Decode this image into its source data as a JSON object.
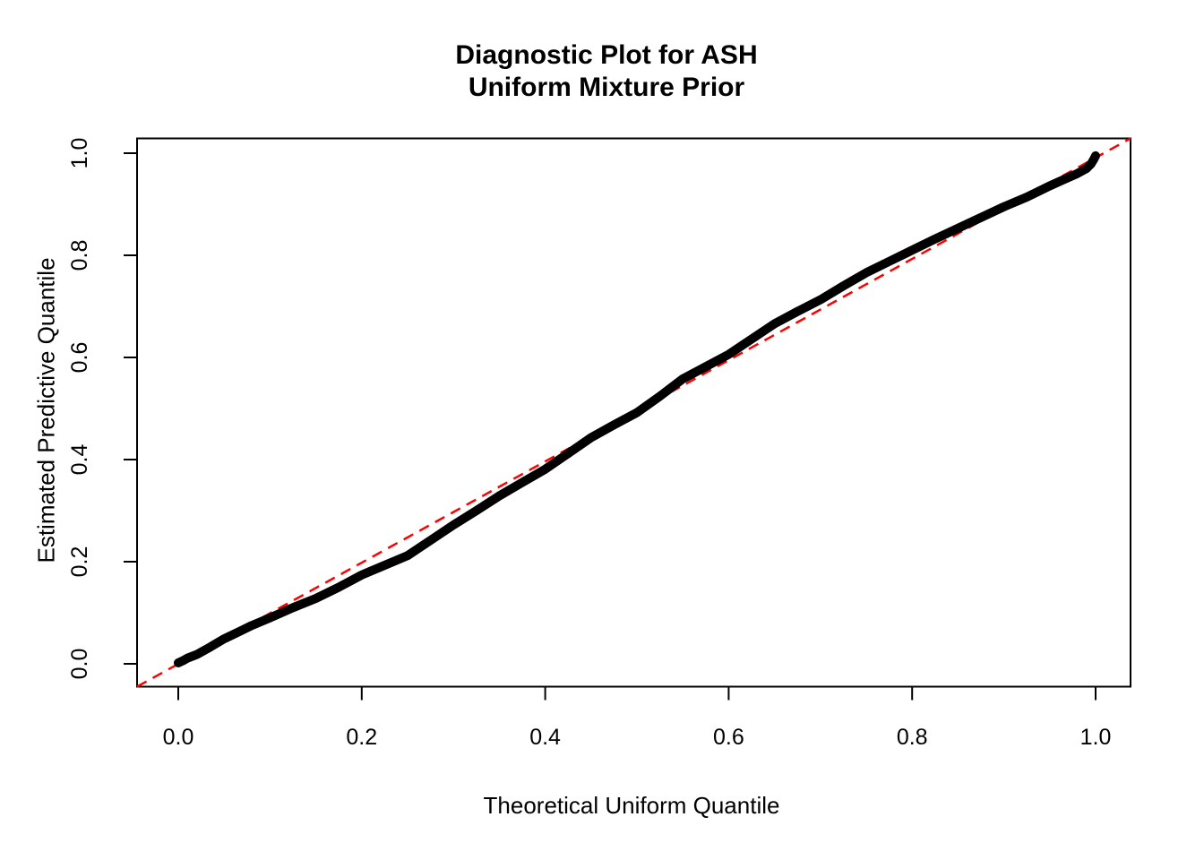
{
  "title": {
    "line1": "Diagnostic Plot for ASH",
    "line2": "Uniform Mixture Prior"
  },
  "chart_data": {
    "type": "line",
    "title": "Diagnostic Plot for ASH\nUniform Mixture Prior",
    "xlabel": "Theoretical Uniform Quantile",
    "ylabel": "Estimated Predictive Quantile",
    "xlim": [
      -0.04,
      1.04
    ],
    "ylim": [
      -0.04,
      1.04
    ],
    "grid": false,
    "legend_position": "none",
    "x_tick_values": [
      0.0,
      0.2,
      0.4,
      0.6,
      0.8,
      1.0
    ],
    "x_tick_labels": [
      "0.0",
      "0.2",
      "0.4",
      "0.6",
      "0.8",
      "1.0"
    ],
    "y_tick_values": [
      0.0,
      0.2,
      0.4,
      0.6,
      0.8,
      1.0
    ],
    "y_tick_labels": [
      "0.0",
      "0.2",
      "0.4",
      "0.6",
      "0.8",
      "1.0"
    ],
    "series": [
      {
        "name": "estimated-predictive-quantile-curve",
        "color": "#000000",
        "style": "thick-solid",
        "x": [
          0.0,
          0.005,
          0.01,
          0.02,
          0.035,
          0.05,
          0.065,
          0.08,
          0.1,
          0.125,
          0.15,
          0.175,
          0.2,
          0.225,
          0.25,
          0.275,
          0.3,
          0.325,
          0.35,
          0.375,
          0.4,
          0.425,
          0.45,
          0.475,
          0.5,
          0.525,
          0.55,
          0.575,
          0.6,
          0.625,
          0.65,
          0.675,
          0.7,
          0.725,
          0.75,
          0.775,
          0.8,
          0.825,
          0.85,
          0.875,
          0.9,
          0.925,
          0.95,
          0.965,
          0.98,
          0.99,
          0.995,
          0.998,
          1.0
        ],
        "y": [
          0.002,
          0.006,
          0.011,
          0.018,
          0.033,
          0.049,
          0.062,
          0.075,
          0.09,
          0.11,
          0.128,
          0.15,
          0.174,
          0.193,
          0.212,
          0.242,
          0.272,
          0.3,
          0.329,
          0.355,
          0.381,
          0.412,
          0.443,
          0.468,
          0.492,
          0.524,
          0.558,
          0.582,
          0.606,
          0.636,
          0.666,
          0.69,
          0.713,
          0.74,
          0.766,
          0.788,
          0.81,
          0.832,
          0.853,
          0.874,
          0.895,
          0.914,
          0.936,
          0.948,
          0.96,
          0.97,
          0.979,
          0.988,
          0.995
        ]
      },
      {
        "name": "identity-reference-line",
        "color": "#FF0000",
        "style": "dashed",
        "x": [
          -0.04,
          1.04
        ],
        "y": [
          -0.04,
          1.04
        ]
      }
    ]
  },
  "colors": {
    "curve": "#000000",
    "reference_line": "#FF0000",
    "axis": "#000000",
    "background": "#FFFFFF"
  }
}
